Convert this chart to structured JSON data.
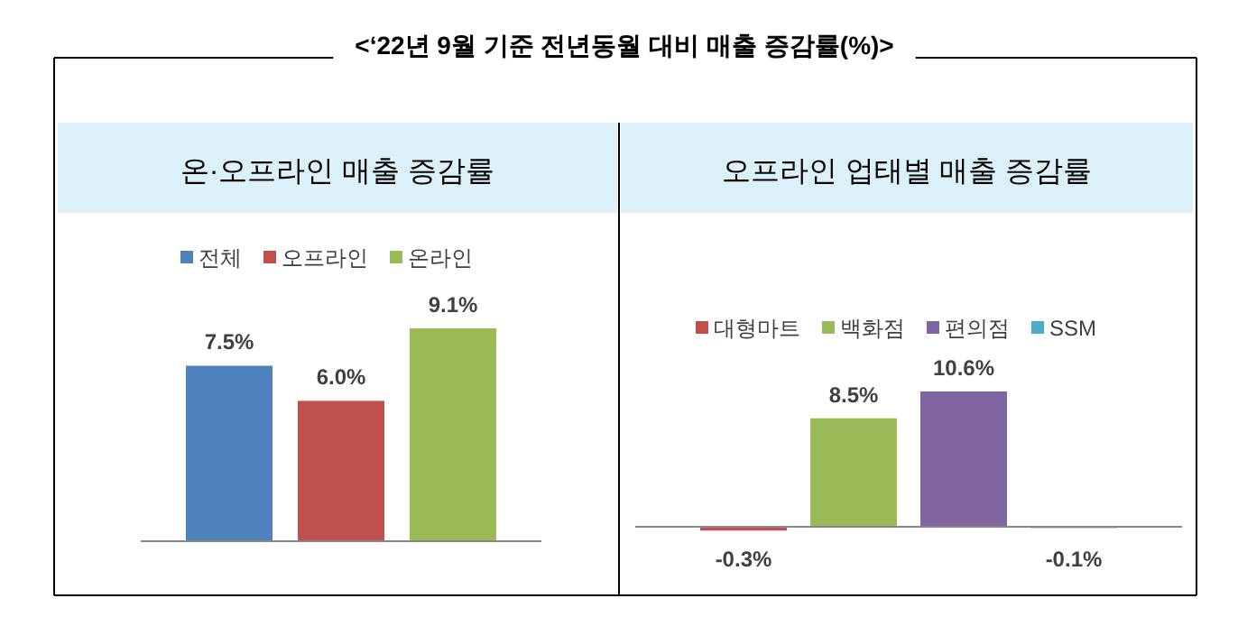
{
  "chart_data": [
    {
      "type": "bar",
      "title": "<‘22년 9월 기준 전년동월 대비 매출 증감률(%)>",
      "subtitle": "온·오프라인 매출 증감률",
      "categories": [
        null
      ],
      "legend": "top",
      "data_labels": true,
      "series": [
        {
          "name": "전체",
          "color": "#4f81bd",
          "values": [
            7.5
          ],
          "value_labels": [
            "7.5%"
          ]
        },
        {
          "name": "오프라인",
          "color": "#c0504d",
          "values": [
            6.0
          ],
          "value_labels": [
            "6.0%"
          ]
        },
        {
          "name": "온라인",
          "color": "#9bbb59",
          "values": [
            9.1
          ],
          "value_labels": [
            "9.1%"
          ]
        }
      ]
    },
    {
      "type": "bar",
      "subtitle": "오프라인 업태별 매출 증감률",
      "categories": [
        null
      ],
      "legend": "top",
      "data_labels": true,
      "series": [
        {
          "name": "대형마트",
          "color": "#c0504d",
          "values": [
            -0.3
          ],
          "value_labels": [
            "-0.3%"
          ]
        },
        {
          "name": "백화점",
          "color": "#9bbb59",
          "values": [
            8.5
          ],
          "value_labels": [
            "8.5%"
          ]
        },
        {
          "name": "편의점",
          "color": "#8064a2",
          "values": [
            10.6
          ],
          "value_labels": [
            "10.6%"
          ]
        },
        {
          "name": "SSM",
          "color": "#4bacc6",
          "values": [
            -0.1
          ],
          "value_labels": [
            "-0.1%"
          ]
        }
      ]
    }
  ]
}
